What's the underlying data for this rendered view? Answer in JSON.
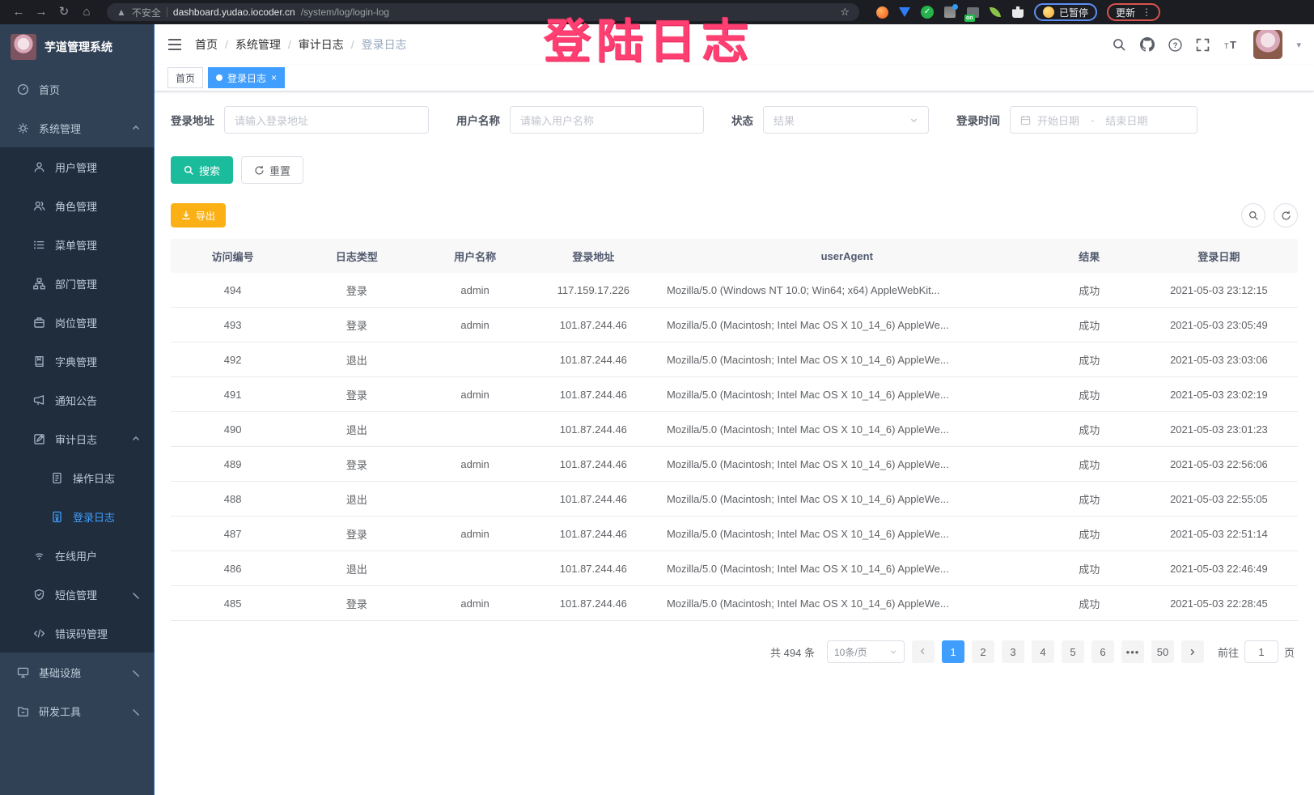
{
  "colors": {
    "accent": "#409EFF",
    "search_button": "#1ABC9C",
    "export_button": "#FBB116",
    "annotation": "#FF3E71",
    "sidebar_bg": "#304156",
    "submenu_bg": "#1F2D3D"
  },
  "browser": {
    "security_label": "不安全",
    "url_domain": "dashboard.yudao.iocoder.cn",
    "url_path": "/system/log/login-log",
    "ext_on_badge": "on",
    "paused_label": "已暂停",
    "update_label": "更新"
  },
  "annotation": {
    "text": "登陆日志"
  },
  "sidebar": {
    "app_title": "芋道管理系统",
    "items": [
      {
        "id": "home",
        "label": "首页",
        "icon": "dashboard",
        "level": 1
      },
      {
        "id": "system-management",
        "label": "系统管理",
        "icon": "gear",
        "level": 1,
        "chevron": "up"
      },
      {
        "id": "user-management",
        "label": "用户管理",
        "icon": "user",
        "level": 2
      },
      {
        "id": "role-management",
        "label": "角色管理",
        "icon": "users",
        "level": 2
      },
      {
        "id": "menu-management",
        "label": "菜单管理",
        "icon": "menu",
        "level": 2
      },
      {
        "id": "dept-management",
        "label": "部门管理",
        "icon": "tree",
        "level": 2
      },
      {
        "id": "post-management",
        "label": "岗位管理",
        "icon": "badge",
        "level": 2
      },
      {
        "id": "dict-management",
        "label": "字典管理",
        "icon": "book",
        "level": 2
      },
      {
        "id": "notice",
        "label": "通知公告",
        "icon": "megaphone",
        "level": 2
      },
      {
        "id": "audit-log",
        "label": "审计日志",
        "icon": "audit",
        "level": 2,
        "chevron": "up"
      },
      {
        "id": "operation-log",
        "label": "操作日志",
        "icon": "doc",
        "level": 3
      },
      {
        "id": "login-log",
        "label": "登录日志",
        "icon": "doc2",
        "level": 3,
        "active": true
      },
      {
        "id": "online-users",
        "label": "在线用户",
        "icon": "online",
        "level": 2
      },
      {
        "id": "sms-management",
        "label": "短信管理",
        "icon": "shield",
        "level": 2,
        "chevron": "down"
      },
      {
        "id": "error-code-management",
        "label": "错误码管理",
        "icon": "code",
        "level": 2
      },
      {
        "id": "infrastructure",
        "label": "基础设施",
        "icon": "infra",
        "level": 1,
        "chevron": "down"
      },
      {
        "id": "dev-tools",
        "label": "研发工具",
        "icon": "tools",
        "level": 1,
        "chevron": "down"
      }
    ]
  },
  "navbar": {
    "breadcrumb": [
      "首页",
      "系统管理",
      "审计日志",
      "登录日志"
    ]
  },
  "tags": [
    {
      "label": "首页",
      "active": false,
      "closable": false
    },
    {
      "label": "登录日志",
      "active": true,
      "closable": true
    }
  ],
  "filters": {
    "login_address_label": "登录地址",
    "login_address_placeholder": "请输入登录地址",
    "username_label": "用户名称",
    "username_placeholder": "请输入用户名称",
    "status_label": "状态",
    "status_placeholder": "结果",
    "login_time_label": "登录时间",
    "date_start_placeholder": "开始日期",
    "date_separator": "-",
    "date_end_placeholder": "结束日期",
    "search_label": "搜索",
    "reset_label": "重置"
  },
  "toolbar": {
    "export_label": "导出"
  },
  "table": {
    "headers": [
      "访问编号",
      "日志类型",
      "用户名称",
      "登录地址",
      "userAgent",
      "结果",
      "登录日期"
    ],
    "rows": [
      [
        "494",
        "登录",
        "admin",
        "117.159.17.226",
        "Mozilla/5.0 (Windows NT 10.0; Win64; x64) AppleWebKit...",
        "成功",
        "2021-05-03 23:12:15"
      ],
      [
        "493",
        "登录",
        "admin",
        "101.87.244.46",
        "Mozilla/5.0 (Macintosh; Intel Mac OS X 10_14_6) AppleWe...",
        "成功",
        "2021-05-03 23:05:49"
      ],
      [
        "492",
        "退出",
        "",
        "101.87.244.46",
        "Mozilla/5.0 (Macintosh; Intel Mac OS X 10_14_6) AppleWe...",
        "成功",
        "2021-05-03 23:03:06"
      ],
      [
        "491",
        "登录",
        "admin",
        "101.87.244.46",
        "Mozilla/5.0 (Macintosh; Intel Mac OS X 10_14_6) AppleWe...",
        "成功",
        "2021-05-03 23:02:19"
      ],
      [
        "490",
        "退出",
        "",
        "101.87.244.46",
        "Mozilla/5.0 (Macintosh; Intel Mac OS X 10_14_6) AppleWe...",
        "成功",
        "2021-05-03 23:01:23"
      ],
      [
        "489",
        "登录",
        "admin",
        "101.87.244.46",
        "Mozilla/5.0 (Macintosh; Intel Mac OS X 10_14_6) AppleWe...",
        "成功",
        "2021-05-03 22:56:06"
      ],
      [
        "488",
        "退出",
        "",
        "101.87.244.46",
        "Mozilla/5.0 (Macintosh; Intel Mac OS X 10_14_6) AppleWe...",
        "成功",
        "2021-05-03 22:55:05"
      ],
      [
        "487",
        "登录",
        "admin",
        "101.87.244.46",
        "Mozilla/5.0 (Macintosh; Intel Mac OS X 10_14_6) AppleWe...",
        "成功",
        "2021-05-03 22:51:14"
      ],
      [
        "486",
        "退出",
        "",
        "101.87.244.46",
        "Mozilla/5.0 (Macintosh; Intel Mac OS X 10_14_6) AppleWe...",
        "成功",
        "2021-05-03 22:46:49"
      ],
      [
        "485",
        "登录",
        "admin",
        "101.87.244.46",
        "Mozilla/5.0 (Macintosh; Intel Mac OS X 10_14_6) AppleWe...",
        "成功",
        "2021-05-03 22:28:45"
      ]
    ]
  },
  "pagination": {
    "total_label": "共 494 条",
    "page_size_label": "10条/页",
    "pages": [
      "1",
      "2",
      "3",
      "4",
      "5",
      "6",
      "•••",
      "50"
    ],
    "active_page": "1",
    "goto_label": "前往",
    "goto_value": "1",
    "page_unit_label": "页"
  }
}
